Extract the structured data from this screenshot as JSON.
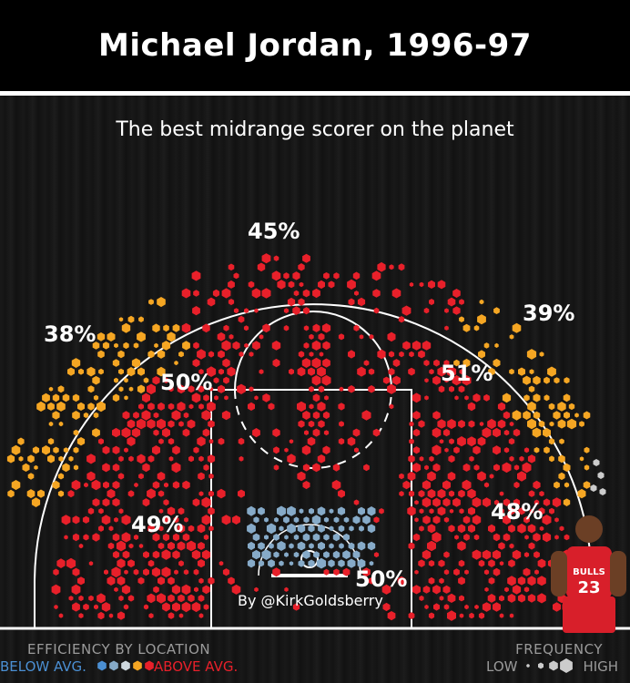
{
  "title": "Michael Jordan, 1996-97",
  "subtitle": "The best midrange scorer on the planet",
  "credit": "By @KirkGoldsberry",
  "zones": [
    {
      "id": "top",
      "pct": "45%"
    },
    {
      "id": "left-wing-three",
      "pct": "38%"
    },
    {
      "id": "right-wing-three",
      "pct": "39%"
    },
    {
      "id": "left-elbow",
      "pct": "50%"
    },
    {
      "id": "right-elbow",
      "pct": "51%"
    },
    {
      "id": "left-baseline",
      "pct": "49%"
    },
    {
      "id": "right-baseline",
      "pct": "48%"
    },
    {
      "id": "restricted-area",
      "pct": "50%"
    }
  ],
  "legend": {
    "efficiency_title": "EFFICIENCY BY LOCATION",
    "below_label": "BELOW AVG.",
    "above_label": "ABOVE AVG.",
    "frequency_title": "FREQUENCY",
    "low_label": "LOW",
    "high_label": "HIGH"
  },
  "colors": {
    "above_avg": "#e8202a",
    "near_avg": "#f5a623",
    "below_avg": "#86aac8",
    "low_freq": "#cccccc",
    "court_line": "#ffffff",
    "background": "#161616"
  },
  "chart_data": {
    "type": "heatmap",
    "title": "Michael Jordan, 1996-97",
    "subtitle": "The best midrange scorer on the planet",
    "xlabel": "",
    "ylabel": "",
    "encoding": "hexagon color = efficiency relative to league average; hexagon size = shot frequency",
    "zones": [
      {
        "zone": "Top of key three",
        "fg_pct": 45,
        "efficiency": "above"
      },
      {
        "zone": "Left wing three",
        "fg_pct": 38,
        "efficiency": "near"
      },
      {
        "zone": "Right wing three",
        "fg_pct": 39,
        "efficiency": "near"
      },
      {
        "zone": "Left elbow midrange",
        "fg_pct": 50,
        "efficiency": "above"
      },
      {
        "zone": "Right elbow midrange",
        "fg_pct": 51,
        "efficiency": "above"
      },
      {
        "zone": "Left baseline midrange",
        "fg_pct": 49,
        "efficiency": "above"
      },
      {
        "zone": "Right baseline midrange",
        "fg_pct": 48,
        "efficiency": "above"
      },
      {
        "zone": "Restricted area",
        "fg_pct": 50,
        "efficiency": "below"
      }
    ]
  }
}
